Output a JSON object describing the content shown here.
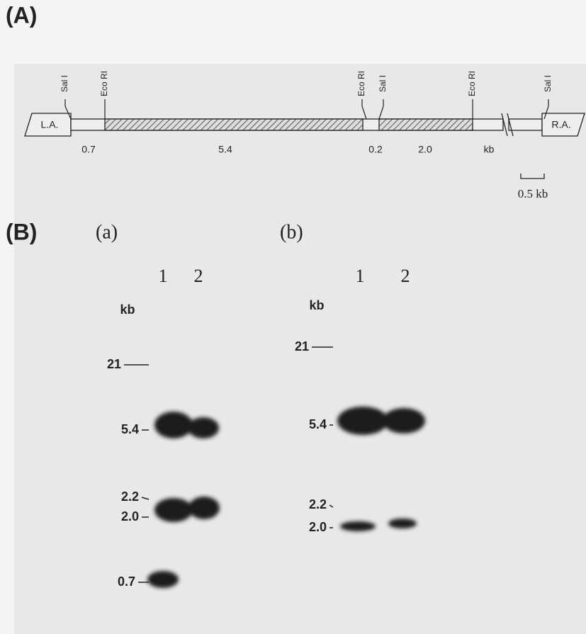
{
  "panel_a": {
    "label": "(A)",
    "sites": [
      "Sal I",
      "Eco RI",
      "Eco RI",
      "Sal I",
      "Eco RI",
      "Sal I"
    ],
    "ends": [
      "L.A.",
      "R.A."
    ],
    "segments": [
      "0.7",
      "5.4",
      "0.2",
      "2.0",
      "kb"
    ],
    "scale": "0.5 kb"
  },
  "panel_b": {
    "label": "(B)",
    "gels": [
      {
        "label": "(a)",
        "lanes": [
          "1",
          "2"
        ],
        "unit": "kb",
        "markers": [
          "21",
          "5.4",
          "2.2",
          "2.0",
          "0.7"
        ]
      },
      {
        "label": "(b)",
        "lanes": [
          "1",
          "2"
        ],
        "unit": "kb",
        "markers": [
          "21",
          "5.4",
          "2.2",
          "2.0"
        ]
      }
    ]
  }
}
